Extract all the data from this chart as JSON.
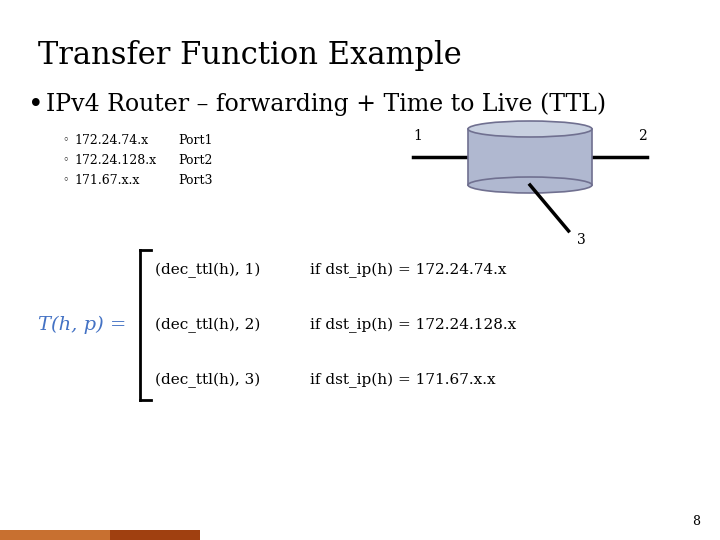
{
  "title": "Transfer Function Example",
  "bullet": "IPv4 Router – forwarding + Time to Live (TTL)",
  "title_color": "#000000",
  "bullet_color": "#000000",
  "title_fontsize": 22,
  "bullet_fontsize": 17,
  "bg_color": "#ffffff",
  "ports": [
    {
      "ip": "172.24.74.x",
      "port": "Port1"
    },
    {
      "ip": "172.24.128.x",
      "port": "Port2"
    },
    {
      "ip": "171.67.x.x",
      "port": "Port3"
    }
  ],
  "router_color": "#b0b8d0",
  "router_top_color": "#c8d0e0",
  "router_edge_color": "#707090",
  "formula_label": "T(h, p) =",
  "formula_color": "#4472c4",
  "rows": [
    {
      "expr": "(dec_ttl(h), 1)",
      "cond": "if dst_ip(h) = 172.24.74.x"
    },
    {
      "expr": "(dec_ttl(h), 2)",
      "cond": "if dst_ip(h) = 172.24.128.x"
    },
    {
      "expr": "(dec_ttl(h), 3)",
      "cond": "if dst_ip(h) = 171.67.x.x"
    }
  ],
  "page_number": "8",
  "bottom_bar_left_color": "#c87030",
  "bottom_bar_right_color": "#a04010"
}
